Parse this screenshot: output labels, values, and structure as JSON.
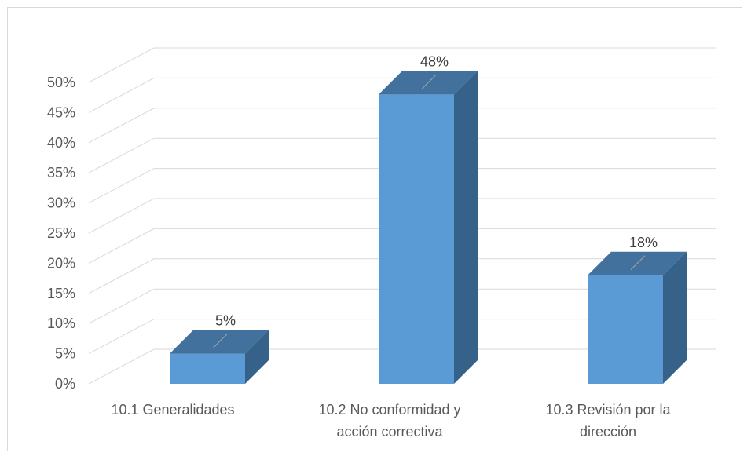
{
  "chart_data": {
    "type": "bar",
    "style": "3d-column",
    "categories": [
      [
        "10.1 Generalidades"
      ],
      [
        "10.2 No conformidad y",
        "acción correctiva"
      ],
      [
        "10.3 Revisión por la",
        "dirección"
      ]
    ],
    "values": [
      5,
      48,
      18
    ],
    "value_labels": [
      "5%",
      "48%",
      "18%"
    ],
    "y_ticks": [
      "0%",
      "5%",
      "10%",
      "15%",
      "20%",
      "25%",
      "30%",
      "35%",
      "40%",
      "45%",
      "50%"
    ],
    "ylim": [
      0,
      50
    ],
    "grid": true,
    "legend": "none",
    "colors": {
      "bar_front": "#5b9bd5",
      "bar_top": "#41719c",
      "bar_side": "#366289",
      "grid": "#d9d9d9",
      "leader": "#a6a6a6"
    }
  }
}
